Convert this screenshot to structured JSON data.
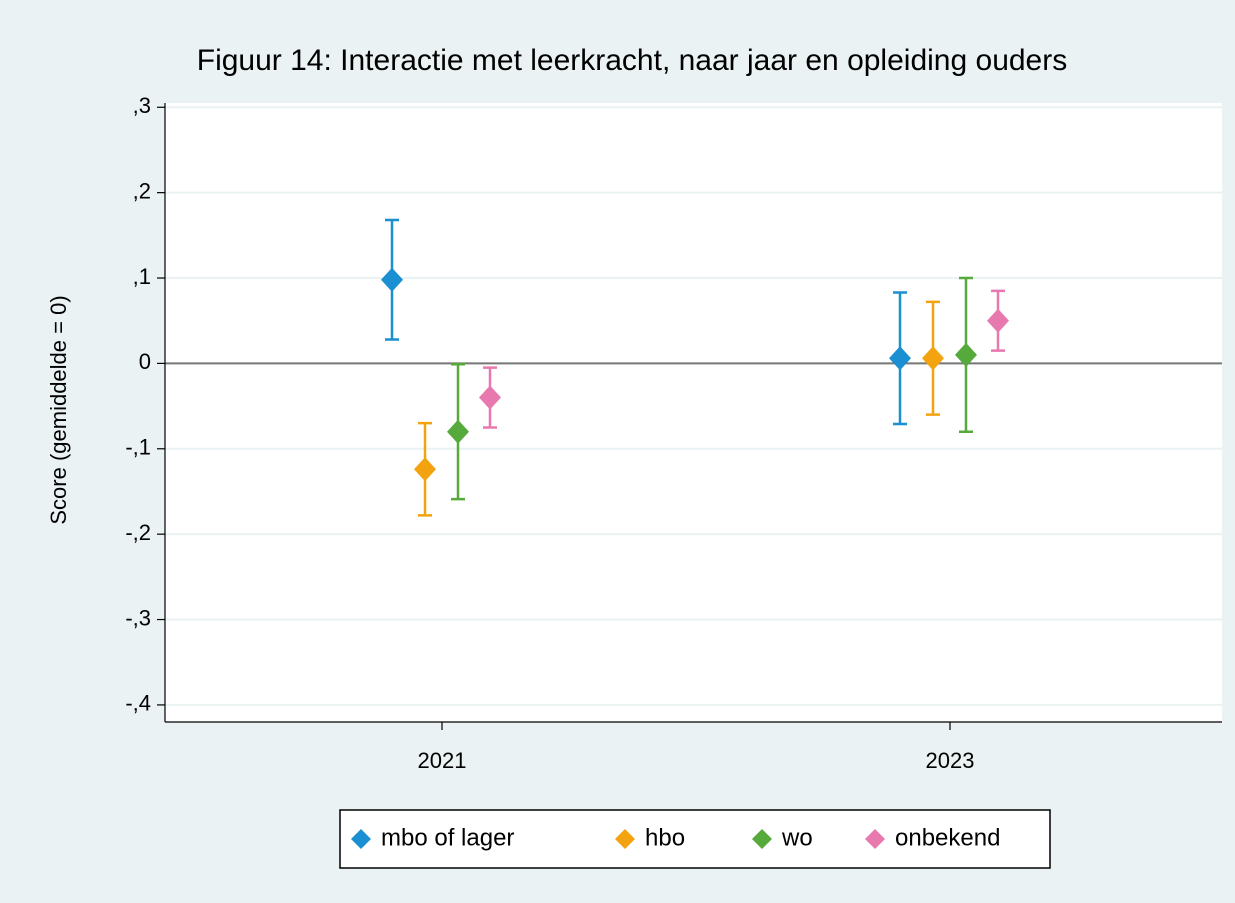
{
  "chart_data": {
    "type": "errorbar",
    "title": "Figuur 14: Interactie met leerkracht, naar jaar en opleiding ouders",
    "ylabel": "Score (gemiddelde = 0)",
    "categories": [
      "2021",
      "2023"
    ],
    "series": [
      {
        "name": "mbo of lager",
        "color": "#1a8fd1",
        "values": [
          0.098,
          0.006
        ],
        "errors": [
          0.07,
          0.077
        ]
      },
      {
        "name": "hbo",
        "color": "#f2a30f",
        "values": [
          -0.124,
          0.006
        ],
        "errors": [
          0.054,
          0.066
        ]
      },
      {
        "name": "wo",
        "color": "#56a93b",
        "values": [
          -0.08,
          0.01
        ],
        "errors": [
          0.079,
          0.09
        ]
      },
      {
        "name": "onbekend",
        "color": "#e879ae",
        "values": [
          -0.04,
          0.05
        ],
        "errors": [
          0.035,
          0.035
        ]
      }
    ],
    "ylim": [
      -0.42,
      0.305
    ],
    "yticks": [
      {
        "value": 0.3,
        "label": ",3"
      },
      {
        "value": 0.2,
        "label": ",2"
      },
      {
        "value": 0.1,
        "label": ",1"
      },
      0,
      {
        "value": -0.1,
        "label": "-,1"
      },
      {
        "value": -0.2,
        "label": "-,2"
      },
      {
        "value": -0.3,
        "label": "-,3"
      },
      {
        "value": -0.4,
        "label": "-,4"
      }
    ],
    "reference_line": 0,
    "grid": true,
    "legend": "bottom"
  }
}
